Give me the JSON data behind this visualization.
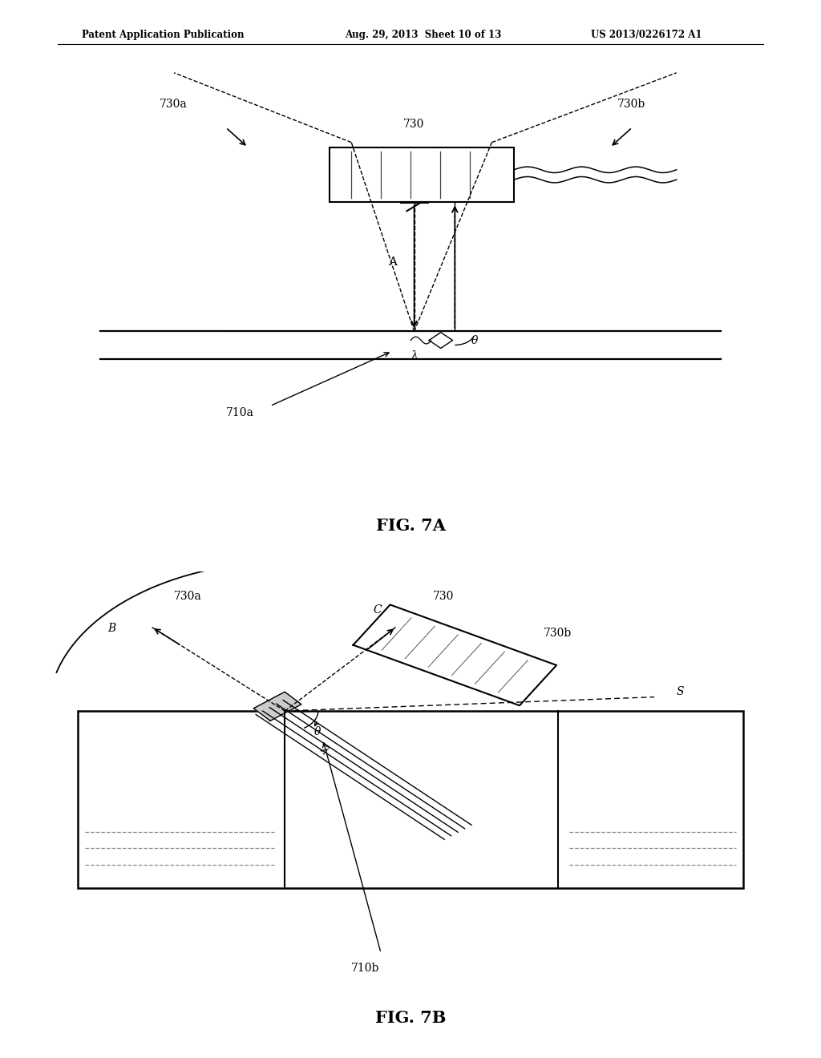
{
  "background_color": "#ffffff",
  "header_left": "Patent Application Publication",
  "header_mid": "Aug. 29, 2013  Sheet 10 of 13",
  "header_right": "US 2013/0226172 A1",
  "fig7a_label": "FIG. 7A",
  "fig7b_label": "FIG. 7B",
  "label_730": "730",
  "label_730a": "730a",
  "label_730b": "730b",
  "label_710a": "710a",
  "label_A": "A",
  "label_theta": "θ",
  "label_lambda": "λ",
  "label_B": "B",
  "label_C": "C",
  "label_S": "S",
  "label_710b": "710b",
  "line_color": "#000000",
  "gray_line": "#888888"
}
